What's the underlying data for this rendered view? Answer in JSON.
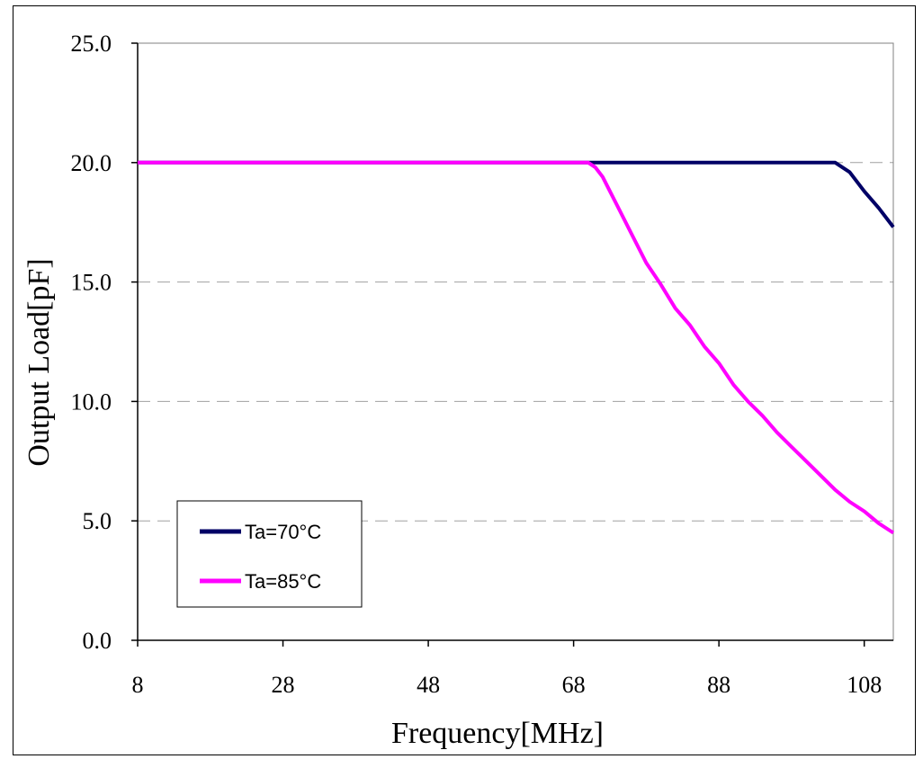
{
  "chart_data": {
    "type": "line",
    "xlabel": "Frequency[MHz]",
    "ylabel": "Output Load[pF]",
    "xlim": [
      8,
      112
    ],
    "ylim": [
      0,
      25
    ],
    "x_ticks": [
      "8",
      "28",
      "48",
      "68",
      "88",
      "108"
    ],
    "y_ticks": [
      "0.0",
      "5.0",
      "10.0",
      "15.0",
      "20.0",
      "25.0"
    ],
    "grid": "horizontal dashed",
    "legend_position": "bottom-left",
    "series": [
      {
        "name": "Ta=70°C",
        "color": "#000066",
        "x": [
          8,
          20,
          40,
          60,
          70,
          80,
          90,
          100,
          104,
          106,
          108,
          110,
          112
        ],
        "y": [
          20.0,
          20.0,
          20.0,
          20.0,
          20.0,
          20.0,
          20.0,
          20.0,
          20.0,
          19.6,
          18.8,
          18.1,
          17.3
        ]
      },
      {
        "name": "Ta=85°C",
        "color": "#ff00ff",
        "x": [
          8,
          20,
          40,
          60,
          70,
          71,
          72,
          73,
          74,
          76,
          78,
          80,
          82,
          84,
          86,
          88,
          90,
          92,
          94,
          96,
          98,
          100,
          102,
          104,
          106,
          108,
          110,
          112
        ],
        "y": [
          20.0,
          20.0,
          20.0,
          20.0,
          20.0,
          19.8,
          19.4,
          18.8,
          18.2,
          17.0,
          15.8,
          14.9,
          13.9,
          13.2,
          12.3,
          11.6,
          10.7,
          10.0,
          9.4,
          8.7,
          8.1,
          7.5,
          6.9,
          6.3,
          5.8,
          5.4,
          4.9,
          4.5
        ]
      }
    ]
  }
}
